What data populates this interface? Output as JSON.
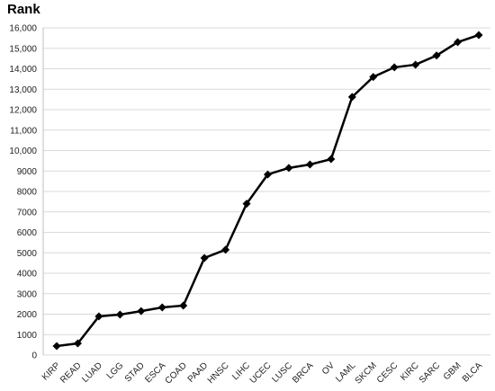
{
  "chart_data": {
    "type": "line",
    "title": "Rank",
    "categories": [
      "KIRP",
      "READ",
      "LUAD",
      "LGG",
      "STAD",
      "ESCA",
      "COAD",
      "PAAD",
      "HNSC",
      "LIHC",
      "UCEC",
      "LUSC",
      "BRCA",
      "OV",
      "LAML",
      "SKCM",
      "CESC",
      "KIRC",
      "SARC",
      "GBM",
      "BLCA"
    ],
    "values": [
      440,
      570,
      1890,
      1980,
      2150,
      2330,
      2420,
      4750,
      5150,
      7400,
      8830,
      9150,
      9320,
      9580,
      12620,
      13600,
      14070,
      14200,
      14650,
      15300,
      15650
    ],
    "color": "#000000",
    "ylim": [
      0,
      16000
    ],
    "yticks": [
      0,
      1000,
      2000,
      3000,
      4000,
      5000,
      6000,
      7000,
      8000,
      9000,
      {
        "value": 10000,
        "label": "10,000"
      },
      {
        "value": 11000,
        "label": "11,000"
      },
      {
        "value": 12000,
        "label": "12,000"
      },
      {
        "value": 13000,
        "label": "13,000"
      },
      {
        "value": 14000,
        "label": "14,000"
      },
      {
        "value": 15000,
        "label": "15,000"
      },
      {
        "value": 16000,
        "label": "16,000"
      }
    ],
    "grid": true
  }
}
